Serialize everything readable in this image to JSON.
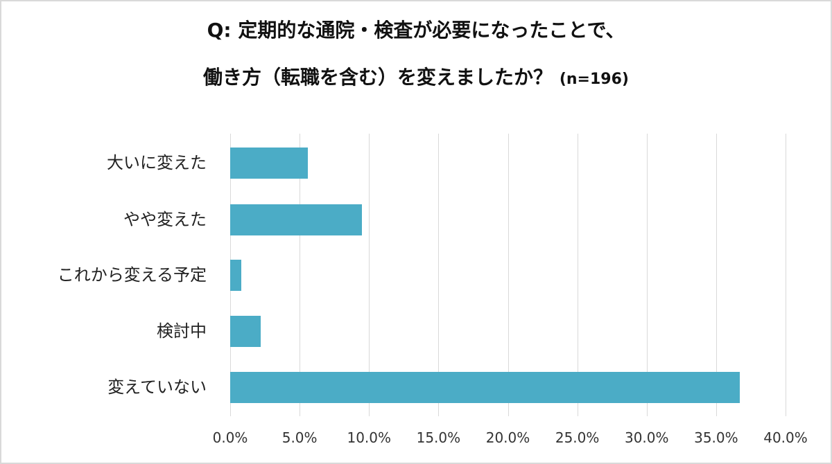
{
  "title": {
    "line1": "Q: 定期的な通院・検査が必要になったことで、",
    "line2": "働き方（転職を含む）を変えましたか？",
    "n_label": "(n=196)"
  },
  "colors": {
    "bar": "#4bacc6",
    "grid": "#d9d9d9",
    "border": "#d9d9d9"
  },
  "axis": {
    "ticks": [
      "0.0%",
      "5.0%",
      "10.0%",
      "15.0%",
      "20.0%",
      "25.0%",
      "30.0%",
      "35.0%",
      "40.0%"
    ]
  },
  "categories": [
    {
      "label": "大いに変えた",
      "value": 5.6
    },
    {
      "label": "やや変えた",
      "value": 9.5
    },
    {
      "label": "これから変える予定",
      "value": 0.8
    },
    {
      "label": "検討中",
      "value": 2.2
    },
    {
      "label": "変えていない",
      "value": 36.7
    }
  ],
  "chart_data": {
    "type": "bar",
    "orientation": "horizontal",
    "title": "Q: 定期的な通院・検査が必要になったことで、働き方（転職を含む）を変えましたか？ (n=196)",
    "categories": [
      "大いに変えた",
      "やや変えた",
      "これから変える予定",
      "検討中",
      "変えていない"
    ],
    "values": [
      5.6,
      9.5,
      0.8,
      2.2,
      36.7
    ],
    "unit": "%",
    "xlabel": "",
    "ylabel": "",
    "xlim": [
      0,
      40
    ],
    "xticks": [
      "0.0%",
      "5.0%",
      "10.0%",
      "15.0%",
      "20.0%",
      "25.0%",
      "30.0%",
      "35.0%",
      "40.0%"
    ],
    "grid": "vertical",
    "legend": "none"
  }
}
